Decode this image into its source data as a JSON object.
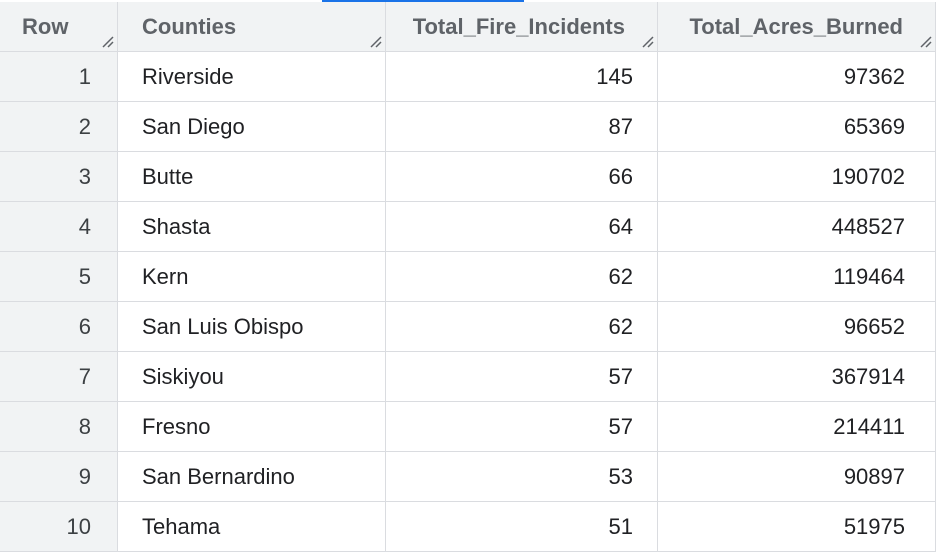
{
  "table": {
    "columns": [
      "Row",
      "Counties",
      "Total_Fire_Incidents",
      "Total_Acres_Burned"
    ],
    "rows": [
      [
        "1",
        "Riverside",
        "145",
        "97362"
      ],
      [
        "2",
        "San Diego",
        "87",
        "65369"
      ],
      [
        "3",
        "Butte",
        "66",
        "190702"
      ],
      [
        "4",
        "Shasta",
        "64",
        "448527"
      ],
      [
        "5",
        "Kern",
        "62",
        "119464"
      ],
      [
        "6",
        "San Luis Obispo",
        "62",
        "96652"
      ],
      [
        "7",
        "Siskiyou",
        "57",
        "367914"
      ],
      [
        "8",
        "Fresno",
        "57",
        "214411"
      ],
      [
        "9",
        "San Bernardino",
        "53",
        "90897"
      ],
      [
        "10",
        "Tehama",
        "51",
        "51975"
      ]
    ]
  },
  "icons": {
    "column_resize": "resize-handle-icon"
  },
  "colors": {
    "accent": "#1a73e8",
    "header_bg": "#f1f3f4",
    "grid_line": "#dadce0"
  }
}
